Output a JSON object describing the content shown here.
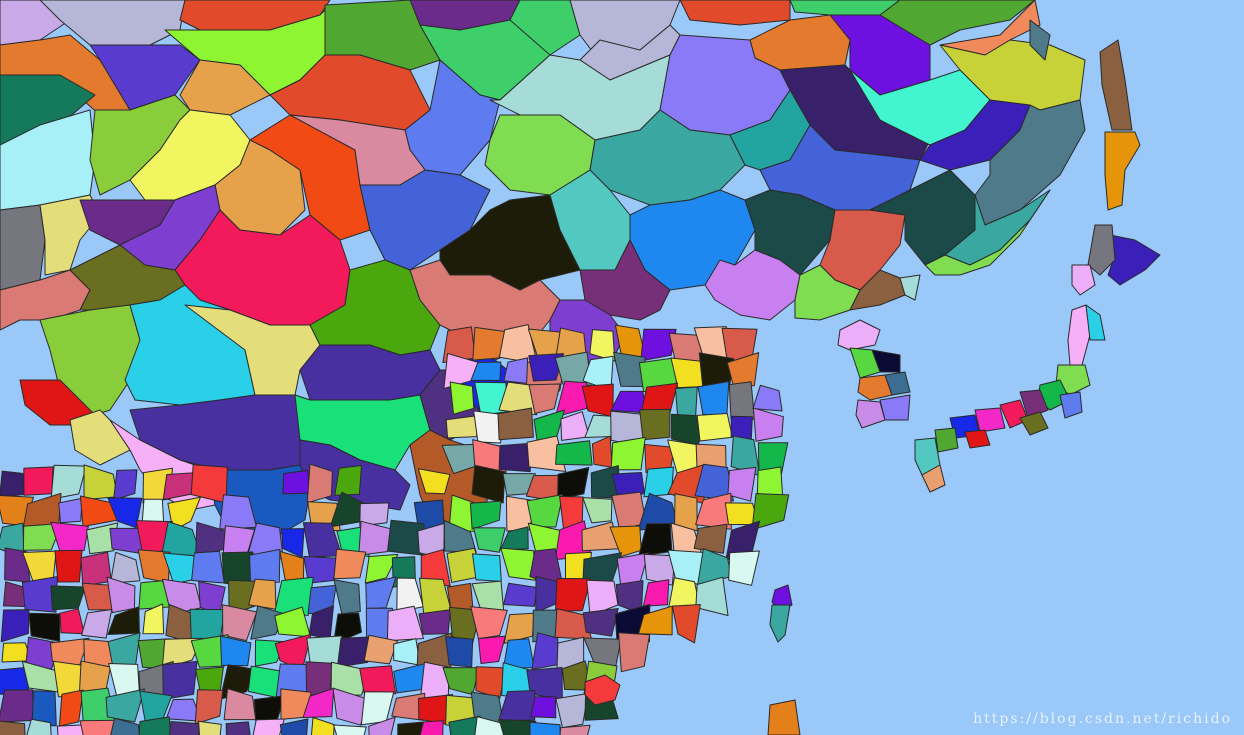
{
  "map": {
    "sea_color": "#9ac8f8",
    "region_colors": [
      "#c9a9e8",
      "#e24a2c",
      "#8ef532",
      "#50a832",
      "#3ecf6a",
      "#6a2b8a",
      "#b6b6d8",
      "#f2f2f2",
      "#7e3fd0",
      "#f08a5c",
      "#6d10e0",
      "#c6d238",
      "#e47a2e",
      "#147a5a",
      "#a8f0f8",
      "#5a3bd0",
      "#8acd3a",
      "#f0f560",
      "#e6a24a",
      "#f24a14",
      "#5f7bf0",
      "#d98aa0",
      "#4463d8",
      "#ecaef8",
      "#80dc50",
      "#a6dcd8",
      "#3aa7a0",
      "#8a7af8",
      "#22a4a0",
      "#38206a",
      "#42f5d0",
      "#3a20b8",
      "#4e7a8a",
      "#8a6040",
      "#e6950a",
      "#76767e",
      "#2acfe8",
      "#e4de7a",
      "#f21a5a",
      "#1c1c08",
      "#52c8c0",
      "#1e88f0",
      "#c880f0",
      "#d97a74",
      "#1c4a48",
      "#d85a4a",
      "#4aa80e",
      "#782f7a",
      "#e01616",
      "#1828e8",
      "#1ae07a",
      "#4830a0",
      "#1a5ac0",
      "#b45a28",
      "#f6b0f8",
      "#0e0e08",
      "#f2d838",
      "#d8f8f0",
      "#14b84a",
      "#f428c8",
      "#17452c",
      "#f87a7a",
      "#f43a3a",
      "#6a6e20",
      "#f2e020",
      "#0a0a34",
      "#fa1ab0",
      "#3b6e90",
      "#c88ce8",
      "#58d840",
      "#1e4aa8",
      "#e8a070",
      "#76a8a8",
      "#a8e0a8",
      "#f8c0a0",
      "#503080",
      "#c8307a",
      "#e4801a"
    ],
    "watermark": "https://blog.csdn.net/richido"
  }
}
